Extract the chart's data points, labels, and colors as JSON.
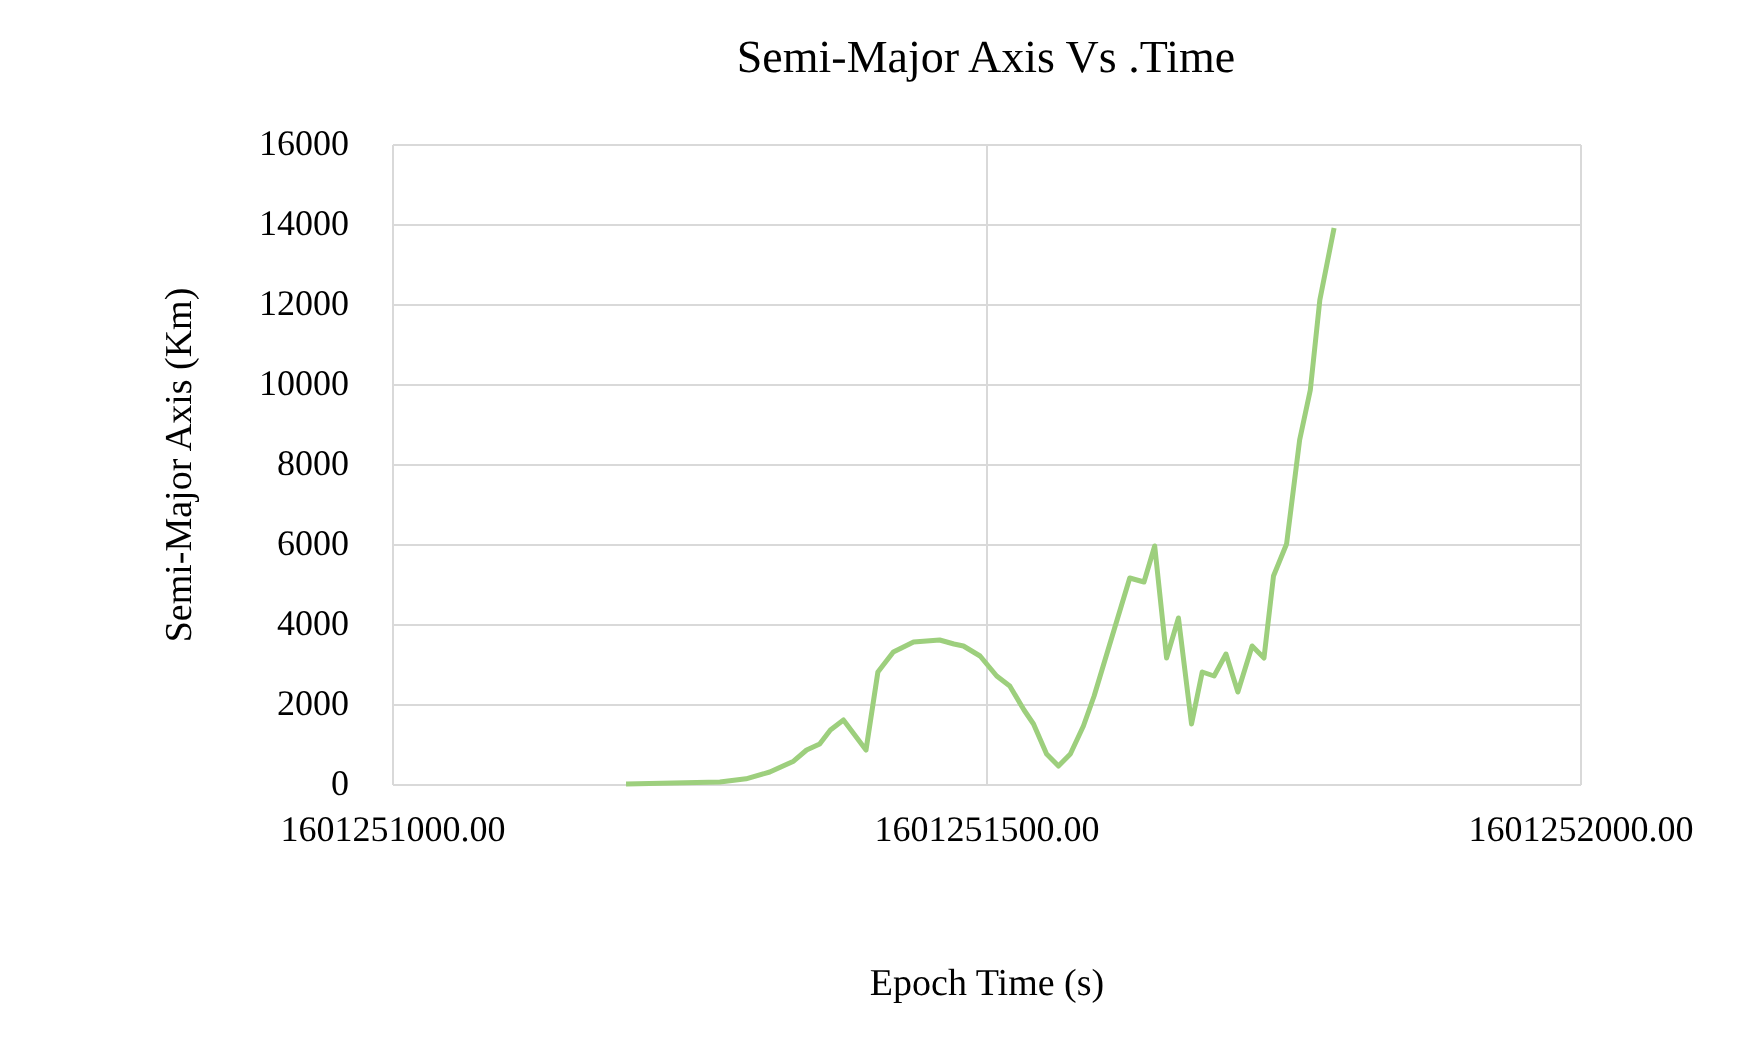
{
  "chart_data": {
    "type": "line",
    "title": "Semi-Major Axis Vs .Time",
    "xlabel": "Epoch Time (s)",
    "ylabel": "Semi-Major Axis  (Km)",
    "xlim": [
      1601251000,
      1601252000
    ],
    "xticks": [
      {
        "value": 1601251000,
        "label": "1601251000.00"
      },
      {
        "value": 1601251500,
        "label": "1601251500.00"
      },
      {
        "value": 1601252000,
        "label": "1601252000.00"
      }
    ],
    "ylim": [
      0,
      16000
    ],
    "yticks": [
      0,
      2000,
      4000,
      6000,
      8000,
      10000,
      12000,
      14000,
      16000
    ],
    "grid": true,
    "line_style": "solid",
    "marker": "none",
    "series": [
      {
        "color": "#9dcf7d",
        "x": [
          1601251197,
          1601251276,
          1601251298,
          1601251318,
          1601251338,
          1601251349,
          1601251360,
          1601251369,
          1601251380,
          1601251399,
          1601251409,
          1601251422,
          1601251439,
          1601251461,
          1601251473,
          1601251481,
          1601251495,
          1601251509,
          1601251520,
          1601251532,
          1601251540,
          1601251551,
          1601251561,
          1601251571,
          1601251582,
          1601251591,
          1601251621,
          1601251633,
          1601251642,
          1601251652,
          1601251662,
          1601251673,
          1601251682,
          1601251692,
          1601251702,
          1601251712,
          1601251724,
          1601251734,
          1601251742,
          1601251753,
          1601251764,
          1601251773,
          1601251781,
          1601251793
        ],
        "values": [
          0,
          50,
          130,
          300,
          570,
          850,
          1000,
          1350,
          1600,
          850,
          2800,
          3300,
          3550,
          3600,
          3500,
          3450,
          3200,
          2700,
          2450,
          1850,
          1500,
          750,
          450,
          750,
          1450,
          2200,
          5150,
          5050,
          5950,
          3150,
          4150,
          1500,
          2800,
          2700,
          3250,
          2300,
          3450,
          3150,
          5200,
          6000,
          8600,
          9850,
          12100,
          13900
        ]
      }
    ]
  }
}
